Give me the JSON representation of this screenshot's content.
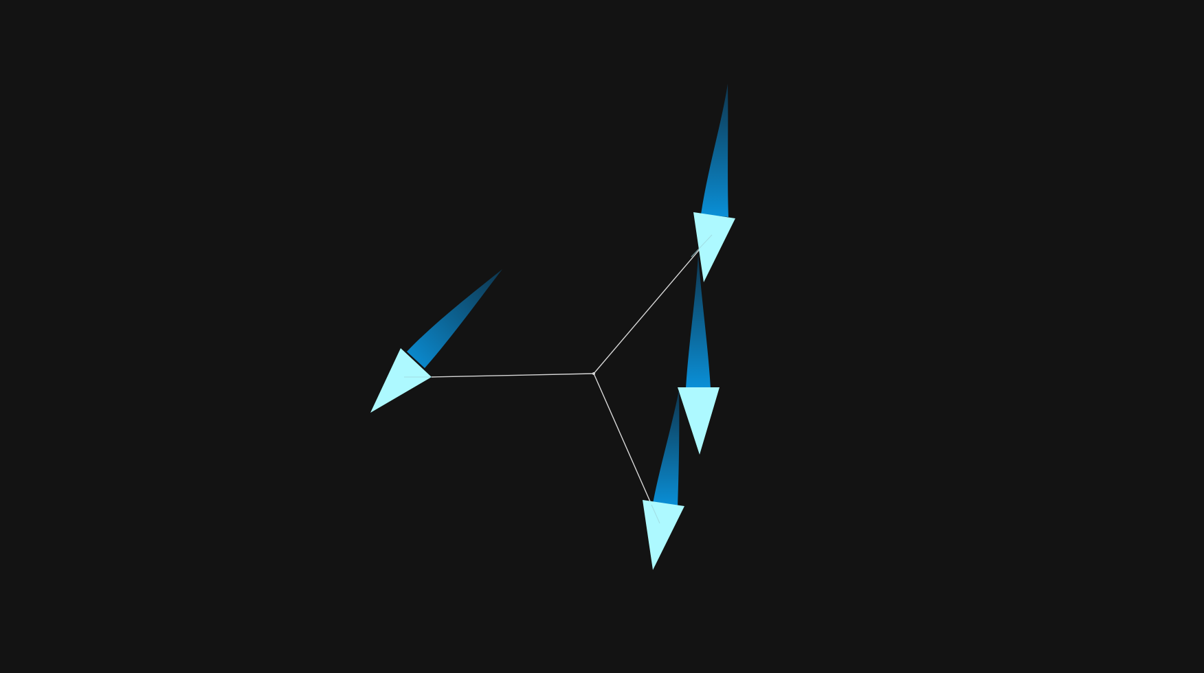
{
  "scene": {
    "background_color": "#131313",
    "edge_color": "#d8d8d8",
    "arrow_head_color": "#adf9ff",
    "trail_color_bright": "#0a90d8",
    "trail_color_dark": "#0e3a55"
  },
  "graph": {
    "center_node": "center-vertex",
    "edges_count": 3,
    "arrows_count": 4
  }
}
